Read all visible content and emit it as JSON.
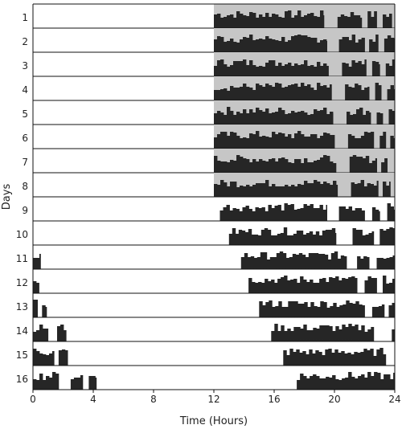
{
  "chart_data": {
    "type": "actogram",
    "xlabel": "Time (Hours)",
    "ylabel": "Days",
    "xlim": [
      0,
      24
    ],
    "x_ticks": [
      0,
      4,
      8,
      12,
      16,
      20,
      24
    ],
    "x_tick_labels": [
      "0",
      "4",
      "8",
      "12",
      "16",
      "20",
      "24"
    ],
    "day_labels": [
      "1",
      "2",
      "3",
      "4",
      "5",
      "6",
      "7",
      "8",
      "9",
      "10",
      "11",
      "12",
      "13",
      "14",
      "15",
      "16"
    ],
    "dark_phase": {
      "start": 12,
      "end": 24,
      "days": [
        1,
        8
      ],
      "color": "#c6c6c6"
    },
    "activity_color": "#262626",
    "days": [
      {
        "day": 1,
        "bouts": [
          [
            12.0,
            19.3
          ],
          [
            20.2,
            21.8
          ],
          [
            22.2,
            22.8
          ],
          [
            23.2,
            23.8
          ]
        ]
      },
      {
        "day": 2,
        "bouts": [
          [
            12.0,
            19.5
          ],
          [
            20.3,
            22.0
          ],
          [
            22.3,
            22.9
          ],
          [
            23.3,
            24.0
          ]
        ]
      },
      {
        "day": 3,
        "bouts": [
          [
            12.0,
            19.6
          ],
          [
            20.5,
            22.1
          ],
          [
            22.5,
            23.0
          ],
          [
            23.4,
            24.0
          ]
        ]
      },
      {
        "day": 4,
        "bouts": [
          [
            12.0,
            19.8
          ],
          [
            20.7,
            22.3
          ],
          [
            22.7,
            23.1
          ],
          [
            23.5,
            24.0
          ]
        ]
      },
      {
        "day": 5,
        "bouts": [
          [
            12.0,
            19.9
          ],
          [
            20.8,
            22.4
          ],
          [
            22.8,
            23.2
          ],
          [
            23.6,
            24.0
          ]
        ]
      },
      {
        "day": 6,
        "bouts": [
          [
            12.0,
            20.0
          ],
          [
            20.9,
            22.6
          ],
          [
            23.0,
            23.4
          ],
          [
            23.7,
            24.0
          ]
        ]
      },
      {
        "day": 7,
        "bouts": [
          [
            12.0,
            20.1
          ],
          [
            21.0,
            22.8
          ],
          [
            23.1,
            23.5
          ]
        ]
      },
      {
        "day": 8,
        "bouts": [
          [
            12.0,
            20.2
          ],
          [
            21.1,
            22.9
          ],
          [
            23.2,
            23.7
          ]
        ]
      },
      {
        "day": 9,
        "bouts": [
          [
            12.4,
            19.5
          ],
          [
            20.3,
            22.0
          ],
          [
            22.5,
            23.0
          ],
          [
            23.5,
            24.0
          ]
        ]
      },
      {
        "day": 10,
        "bouts": [
          [
            13.0,
            20.1
          ],
          [
            21.2,
            22.6
          ],
          [
            23.0,
            24.0
          ]
        ]
      },
      {
        "day": 11,
        "bouts": [
          [
            0.0,
            0.5
          ],
          [
            13.8,
            20.8
          ],
          [
            21.5,
            22.3
          ],
          [
            22.8,
            24.0
          ]
        ]
      },
      {
        "day": 12,
        "bouts": [
          [
            0.0,
            0.4
          ],
          [
            14.3,
            21.5
          ],
          [
            22.0,
            22.8
          ],
          [
            23.2,
            24.0
          ]
        ]
      },
      {
        "day": 13,
        "bouts": [
          [
            0.0,
            0.3
          ],
          [
            0.6,
            0.9
          ],
          [
            15.0,
            22.0
          ],
          [
            22.5,
            23.3
          ],
          [
            23.6,
            24.0
          ]
        ]
      },
      {
        "day": 14,
        "bouts": [
          [
            0.0,
            1.0
          ],
          [
            1.6,
            2.2
          ],
          [
            15.8,
            22.6
          ],
          [
            23.8,
            24.0
          ]
        ]
      },
      {
        "day": 15,
        "bouts": [
          [
            0.0,
            1.4
          ],
          [
            1.7,
            2.3
          ],
          [
            16.6,
            23.4
          ]
        ]
      },
      {
        "day": 16,
        "bouts": [
          [
            0.0,
            1.7
          ],
          [
            2.5,
            3.3
          ],
          [
            3.7,
            4.2
          ],
          [
            17.5,
            24.0
          ]
        ]
      }
    ]
  }
}
